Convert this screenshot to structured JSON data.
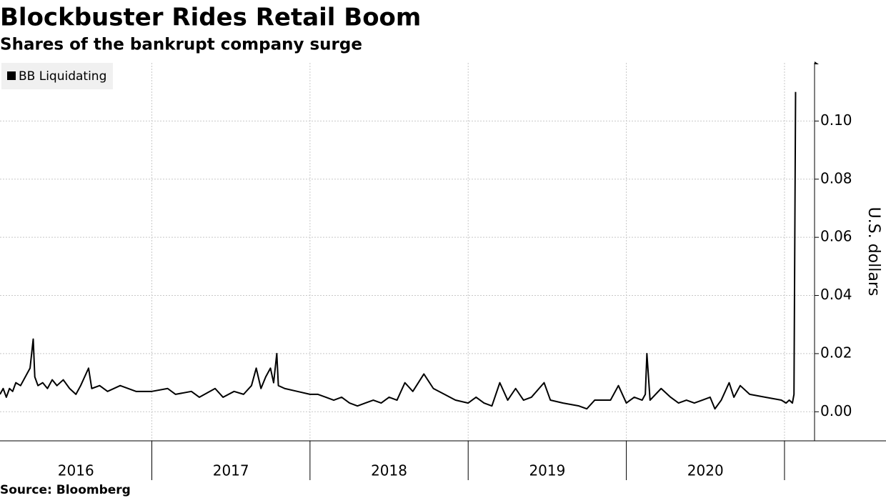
{
  "chart_data": {
    "type": "line",
    "title": "Blockbuster Rides Retail Boom",
    "subtitle": "Shares of the bankrupt company surge",
    "y_axis_label": "U.S. dollars",
    "source": "Source: Bloomberg",
    "categories": [
      "2016",
      "2017",
      "2018",
      "2019",
      "2020"
    ],
    "x": [
      2016.04,
      2016.06,
      2016.08,
      2016.1,
      2016.12,
      2016.14,
      2016.17,
      2016.23,
      2016.25,
      2016.26,
      2016.28,
      2016.31,
      2016.34,
      2016.37,
      2016.4,
      2016.44,
      2016.48,
      2016.52,
      2016.55,
      2016.6,
      2016.62,
      2016.67,
      2016.72,
      2016.8,
      2016.9,
      2017.0,
      2017.1,
      2017.15,
      2017.25,
      2017.3,
      2017.4,
      2017.45,
      2017.52,
      2017.58,
      2017.63,
      2017.66,
      2017.69,
      2017.72,
      2017.75,
      2017.77,
      2017.79,
      2017.8,
      2017.84,
      2017.92,
      2018.0,
      2018.05,
      2018.1,
      2018.15,
      2018.2,
      2018.25,
      2018.3,
      2018.35,
      2018.4,
      2018.45,
      2018.5,
      2018.55,
      2018.6,
      2018.65,
      2018.72,
      2018.78,
      2018.85,
      2018.92,
      2019.0,
      2019.05,
      2019.1,
      2019.15,
      2019.2,
      2019.25,
      2019.3,
      2019.35,
      2019.4,
      2019.48,
      2019.52,
      2019.6,
      2019.7,
      2019.75,
      2019.8,
      2019.9,
      2019.95,
      2020.0,
      2020.05,
      2020.1,
      2020.12,
      2020.13,
      2020.15,
      2020.22,
      2020.28,
      2020.33,
      2020.38,
      2020.43,
      2020.48,
      2020.53,
      2020.56,
      2020.6,
      2020.65,
      2020.68,
      2020.72,
      2020.78,
      2020.88,
      2020.98,
      2021.01,
      2021.03,
      2021.05,
      2021.06,
      2021.07
    ],
    "series": [
      {
        "name": "BB Liquidating",
        "color": "#000000",
        "values": [
          0.006,
          0.008,
          0.005,
          0.008,
          0.007,
          0.01,
          0.009,
          0.015,
          0.025,
          0.012,
          0.009,
          0.01,
          0.008,
          0.011,
          0.009,
          0.011,
          0.008,
          0.006,
          0.009,
          0.015,
          0.008,
          0.009,
          0.007,
          0.009,
          0.007,
          0.007,
          0.008,
          0.006,
          0.007,
          0.005,
          0.008,
          0.005,
          0.007,
          0.006,
          0.009,
          0.015,
          0.008,
          0.012,
          0.015,
          0.01,
          0.02,
          0.009,
          0.008,
          0.007,
          0.006,
          0.006,
          0.005,
          0.004,
          0.005,
          0.003,
          0.002,
          0.003,
          0.004,
          0.003,
          0.005,
          0.004,
          0.01,
          0.007,
          0.013,
          0.008,
          0.006,
          0.004,
          0.003,
          0.005,
          0.003,
          0.002,
          0.01,
          0.004,
          0.008,
          0.004,
          0.005,
          0.01,
          0.004,
          0.003,
          0.002,
          0.001,
          0.004,
          0.004,
          0.009,
          0.003,
          0.005,
          0.004,
          0.006,
          0.02,
          0.004,
          0.008,
          0.005,
          0.003,
          0.004,
          0.003,
          0.004,
          0.005,
          0.001,
          0.004,
          0.01,
          0.005,
          0.009,
          0.006,
          0.005,
          0.004,
          0.003,
          0.004,
          0.003,
          0.006,
          0.11
        ]
      }
    ],
    "xlim": [
      2016.04,
      2021.19
    ],
    "xticks": [
      2017,
      2018,
      2019,
      2020,
      2021
    ],
    "ylim": [
      -0.01,
      0.12
    ],
    "yticks": [
      {
        "value": 0,
        "label": "0.00"
      },
      {
        "value": 0.02,
        "label": "0.02"
      },
      {
        "value": 0.04,
        "label": "0.04"
      },
      {
        "value": 0.06,
        "label": "0.06"
      },
      {
        "value": 0.08,
        "label": "0.08"
      },
      {
        "value": 0.1,
        "label": "0.10"
      }
    ],
    "grid": true,
    "legend": "top-left"
  }
}
